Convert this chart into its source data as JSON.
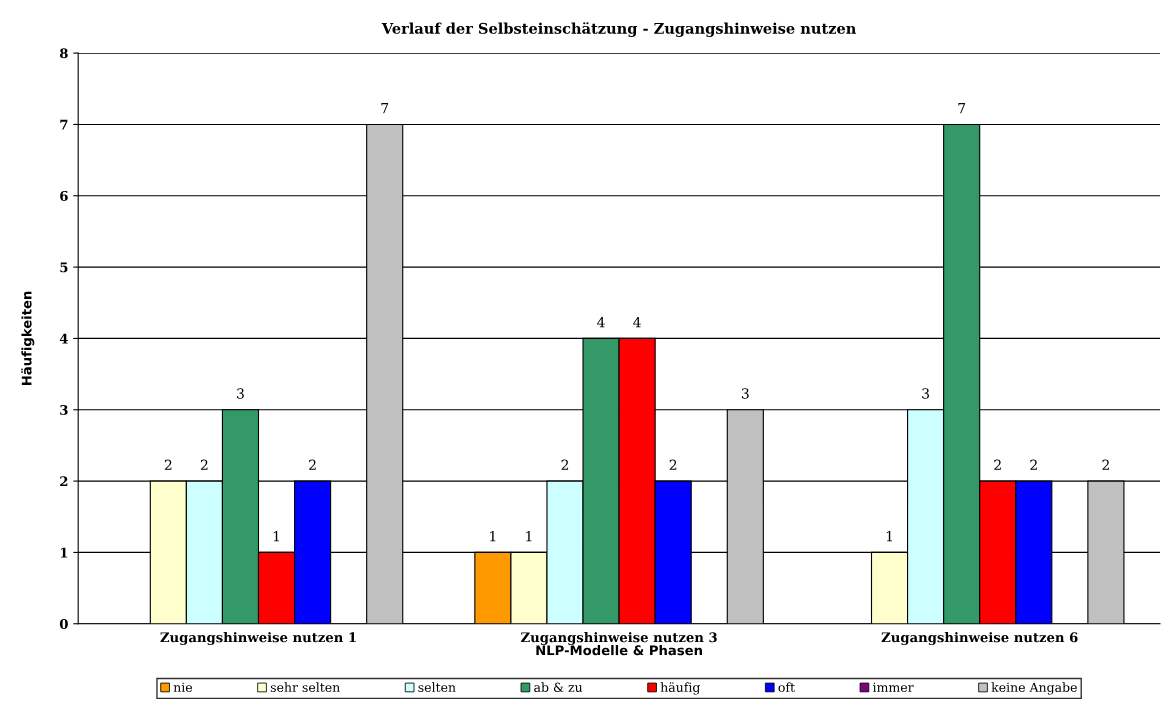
{
  "chart_data": {
    "type": "bar",
    "title": "Verlauf der Selbsteinschätzung - Zugangshinweise nutzen",
    "xlabel": "NLP-Modelle & Phasen",
    "ylabel": "Häufigkeiten",
    "categories": [
      "Zugangshinweise nutzen 1",
      "Zugangshinweise nutzen 3",
      "Zugangshinweise nutzen 6"
    ],
    "series": [
      {
        "name": "nie",
        "color": "#ff9900",
        "values": [
          null,
          1,
          null
        ]
      },
      {
        "name": "sehr selten",
        "color": "#ffffcc",
        "values": [
          2,
          1,
          1
        ]
      },
      {
        "name": "selten",
        "color": "#ccffff",
        "values": [
          2,
          2,
          3
        ]
      },
      {
        "name": "ab & zu",
        "color": "#339966",
        "values": [
          3,
          4,
          7
        ]
      },
      {
        "name": "häufig",
        "color": "#ff0000",
        "values": [
          1,
          4,
          2
        ]
      },
      {
        "name": "oft",
        "color": "#0000ff",
        "values": [
          2,
          2,
          2
        ]
      },
      {
        "name": "immer",
        "color": "#800080",
        "values": [
          null,
          null,
          null
        ]
      },
      {
        "name": "keine Angabe",
        "color": "#c0c0c0",
        "values": [
          7,
          3,
          2
        ]
      }
    ],
    "ylim": [
      0,
      8
    ],
    "yticks": [
      0,
      1,
      2,
      3,
      4,
      5,
      6,
      7,
      8
    ],
    "grid": "y",
    "legend": "bottom",
    "data_labels": true
  }
}
